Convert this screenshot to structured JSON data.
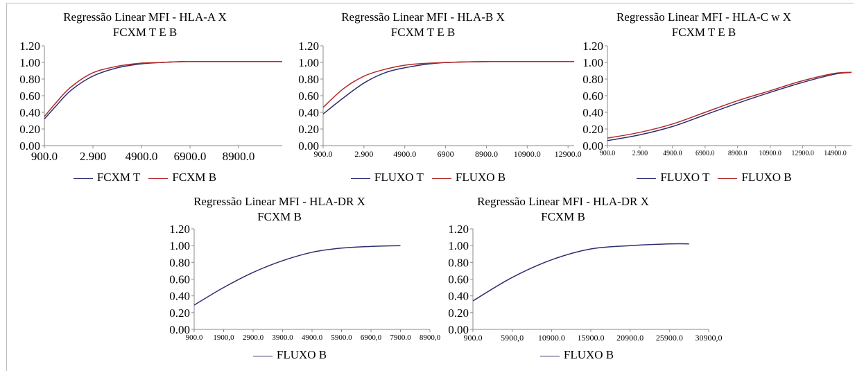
{
  "colors": {
    "fcxm_t": "#2d2d6e",
    "fcxm_b": "#b22a2a",
    "axis": "#8a8a8a"
  },
  "chart_data": [
    {
      "id": "hla-a",
      "type": "line",
      "title_line1": "Regressão Linear MFI - HLA-A X",
      "title_line2": "FCXM T E B",
      "xticks": [
        "900.0",
        "2.900",
        "4900.0",
        "6900.0",
        "8900.0"
      ],
      "yticks": [
        "0.00",
        "0.20",
        "0.40",
        "0.60",
        "0.80",
        "1.00",
        "1.20"
      ],
      "xlim": [
        900,
        10900
      ],
      "ylim": [
        0,
        1.2
      ],
      "legend": "bottom",
      "series": [
        {
          "name": "FCXM T",
          "color": "#2d2d6e",
          "x": [
            900,
            1400,
            2000,
            2900,
            3900,
            4900,
            5900,
            6900,
            8900,
            10900
          ],
          "y": [
            0.32,
            0.48,
            0.66,
            0.83,
            0.93,
            0.98,
            1.0,
            1.01,
            1.01,
            1.01
          ]
        },
        {
          "name": "FCXM B",
          "color": "#b22a2a",
          "x": [
            900,
            1400,
            2000,
            2900,
            3900,
            4900,
            5900,
            6900,
            8900,
            10900
          ],
          "y": [
            0.35,
            0.52,
            0.7,
            0.87,
            0.95,
            0.99,
            1.0,
            1.01,
            1.01,
            1.01
          ]
        }
      ]
    },
    {
      "id": "hla-b",
      "type": "line",
      "title_line1": "Regressão Linear MFI - HLA-B X",
      "title_line2": "FCXM T E B",
      "xticks": [
        "900.0",
        "2.900",
        "4900.0",
        "6900",
        "8900.0",
        "10900.0",
        "12900.0"
      ],
      "yticks": [
        "0.00",
        "0.20",
        "0.40",
        "0.60",
        "0.80",
        "1.00",
        "1.20"
      ],
      "xlim": [
        900,
        12900
      ],
      "ylim": [
        0,
        1.2
      ],
      "legend": "bottom",
      "series": [
        {
          "name": "FLUXO T",
          "color": "#2d2d6e",
          "x": [
            900,
            1900,
            2900,
            3900,
            4900,
            5900,
            6900,
            8900,
            10900,
            12900
          ],
          "y": [
            0.38,
            0.58,
            0.76,
            0.88,
            0.94,
            0.98,
            1.0,
            1.01,
            1.01,
            1.01
          ]
        },
        {
          "name": "FLUXO B",
          "color": "#b22a2a",
          "x": [
            900,
            1900,
            2900,
            3900,
            4900,
            5900,
            6900,
            8900,
            10900,
            12900
          ],
          "y": [
            0.46,
            0.69,
            0.84,
            0.92,
            0.97,
            0.99,
            1.0,
            1.01,
            1.01,
            1.01
          ]
        }
      ]
    },
    {
      "id": "hla-c",
      "type": "line",
      "title_line1": "Regressão Linear MFI - HLA-C w X",
      "title_line2": "FCXM T E B",
      "xticks": [
        "900.0",
        "2.900",
        "4900.0",
        "6900.0",
        "8900.0",
        "10900.0",
        "12900.0",
        "14900.0"
      ],
      "yticks": [
        "0.00",
        "0.20",
        "0.40",
        "0.60",
        "0.80",
        "1.00",
        "1.20"
      ],
      "xlim": [
        900,
        15900
      ],
      "ylim": [
        0,
        1.2
      ],
      "legend": "bottom",
      "series": [
        {
          "name": "FLUXO T",
          "color": "#2d2d6e",
          "x": [
            900,
            2900,
            4900,
            6900,
            8900,
            10900,
            12900,
            14900,
            15900
          ],
          "y": [
            0.06,
            0.13,
            0.23,
            0.37,
            0.51,
            0.64,
            0.76,
            0.86,
            0.88
          ]
        },
        {
          "name": "FLUXO B",
          "color": "#b22a2a",
          "x": [
            900,
            2900,
            4900,
            6900,
            8900,
            10900,
            12900,
            14900,
            15900
          ],
          "y": [
            0.09,
            0.16,
            0.26,
            0.4,
            0.54,
            0.66,
            0.78,
            0.87,
            0.88
          ]
        }
      ]
    },
    {
      "id": "hla-dr-1",
      "type": "line",
      "title_line1": "Regressão Linear MFI - HLA-DR X",
      "title_line2": "FCXM B",
      "xticks": [
        "900.0",
        "1900,0",
        "2900.0",
        "3900.0",
        "4900.0",
        "5900.0",
        "6900,0",
        "7900.0",
        "8900,0"
      ],
      "yticks": [
        "0.00",
        "0.20",
        "0.40",
        "0.60",
        "0.80",
        "1.00",
        "1.20"
      ],
      "xlim": [
        900,
        8900
      ],
      "ylim": [
        0,
        1.2
      ],
      "legend": "bottom",
      "series": [
        {
          "name": "FLUXO B",
          "color": "#2d2d6e",
          "x": [
            900,
            1900,
            2900,
            3900,
            4900,
            5900,
            6900,
            7900
          ],
          "y": [
            0.29,
            0.5,
            0.68,
            0.82,
            0.92,
            0.97,
            0.99,
            1.0
          ]
        }
      ]
    },
    {
      "id": "hla-dr-2",
      "type": "line",
      "title_line1": "Regressão Linear MFI - HLA-DR X",
      "title_line2": "FCXM B",
      "xticks": [
        "900.0",
        "5900,0",
        "10900.0",
        "15900.0",
        "20900.0",
        "25900.0",
        "30900,0"
      ],
      "yticks": [
        "0.00",
        "0.20",
        "0.40",
        "0.60",
        "0.80",
        "1.00",
        "1.20"
      ],
      "xlim": [
        900,
        30900
      ],
      "ylim": [
        0,
        1.2
      ],
      "legend": "bottom",
      "series": [
        {
          "name": "FLUXO B",
          "color": "#2d2d6e",
          "x": [
            900,
            5900,
            10900,
            15900,
            20900,
            25900,
            28400
          ],
          "y": [
            0.34,
            0.62,
            0.83,
            0.96,
            1.0,
            1.02,
            1.02
          ]
        }
      ]
    }
  ]
}
